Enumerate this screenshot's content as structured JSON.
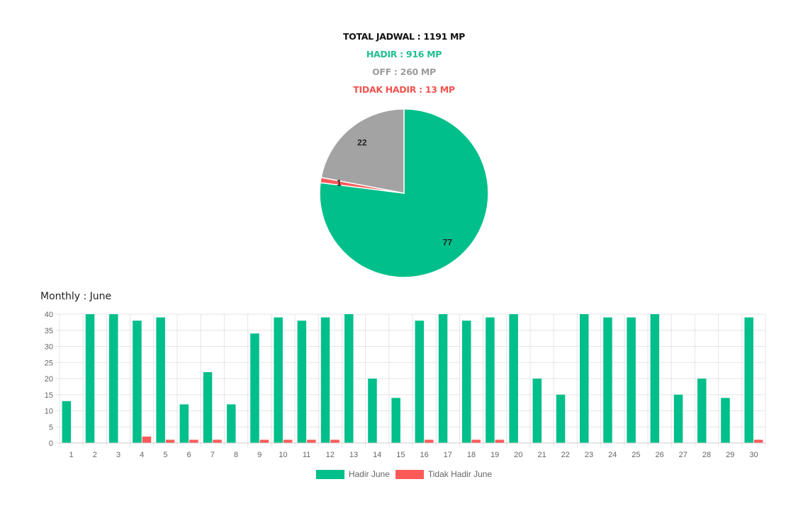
{
  "summary": {
    "total": "TOTAL JADWAL : 1191 MP",
    "hadir": "HADIR : 916 MP",
    "off": "OFF : 260 MP",
    "tidak_hadir": "TIDAK HADIR : 13 MP"
  },
  "colors": {
    "hadir": "#00bf8a",
    "off": "#a3a3a3",
    "tidak_hadir": "#ff5a5a",
    "grid": "#e5e5e5",
    "tick_text": "#666666"
  },
  "monthly_label": "Monthly : June",
  "chart_data": [
    {
      "type": "pie",
      "labels": [
        "HADIR",
        "TIDAK HADIR",
        "OFF"
      ],
      "values": [
        77,
        1,
        22
      ],
      "data_labels": [
        "77",
        "1",
        "22"
      ],
      "colors": [
        "#00bf8a",
        "#ff5a5a",
        "#a3a3a3"
      ]
    },
    {
      "type": "bar",
      "categories": [
        "1",
        "2",
        "3",
        "4",
        "5",
        "6",
        "7",
        "8",
        "9",
        "10",
        "11",
        "12",
        "13",
        "14",
        "15",
        "16",
        "17",
        "18",
        "19",
        "20",
        "21",
        "22",
        "23",
        "24",
        "25",
        "26",
        "27",
        "28",
        "29",
        "30"
      ],
      "series": [
        {
          "name": "Hadir June",
          "color": "#00bf8a",
          "values": [
            13,
            40,
            40,
            38,
            39,
            12,
            22,
            12,
            34,
            39,
            38,
            39,
            40,
            20,
            14,
            38,
            40,
            38,
            39,
            40,
            20,
            15,
            40,
            39,
            39,
            40,
            15,
            20,
            14,
            39
          ]
        },
        {
          "name": "Tidak Hadir June",
          "color": "#ff5a5a",
          "values": [
            0,
            0,
            0,
            2,
            1,
            1,
            1,
            0,
            1,
            1,
            1,
            1,
            0,
            0,
            0,
            1,
            0,
            1,
            1,
            0,
            0,
            0,
            0,
            0,
            0,
            0,
            0,
            0,
            0,
            1
          ]
        }
      ],
      "y_ticks": [
        "0",
        "5",
        "10",
        "15",
        "20",
        "25",
        "30",
        "35",
        "40"
      ],
      "ylim": [
        0,
        40
      ],
      "grid": true,
      "legend": "bottom"
    }
  ]
}
